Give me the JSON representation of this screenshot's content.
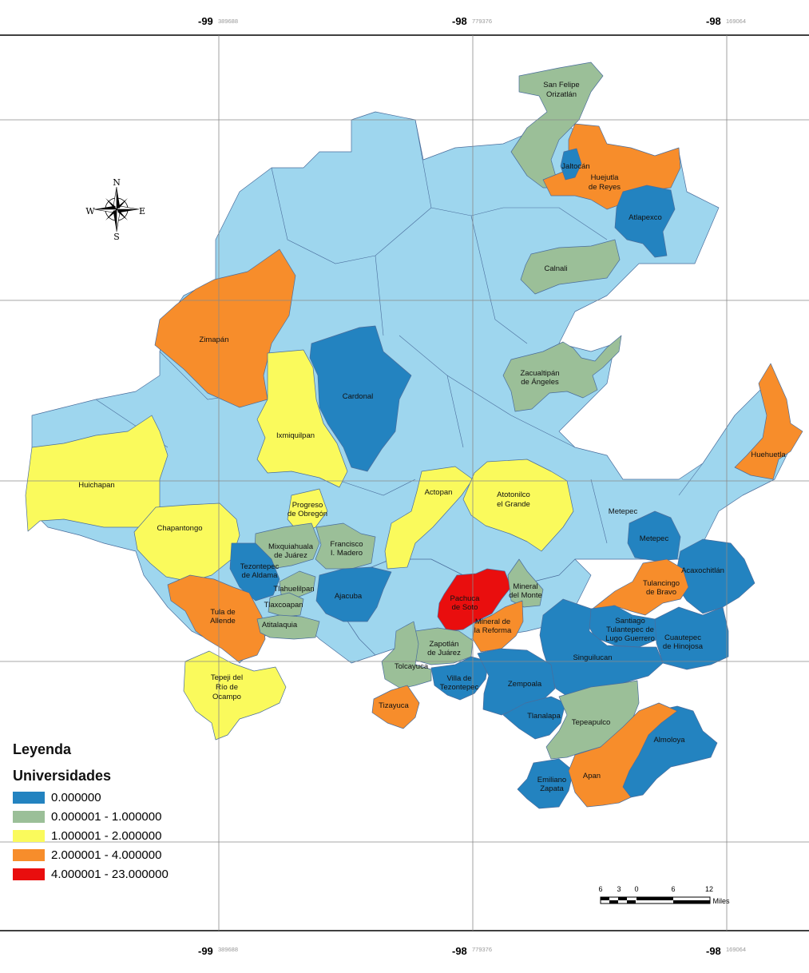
{
  "colors": {
    "background_region": "#9ed6ee",
    "class_0": "#2383c0",
    "class_1": "#9bbf98",
    "class_2": "#fafa5c",
    "class_3": "#f78d2b",
    "class_4": "#e90e0e"
  },
  "coordinates": {
    "longitudes": [
      {
        "deg": "-99",
        "sub": "389688"
      },
      {
        "deg": "-98",
        "sub": "779376"
      },
      {
        "deg": "-98",
        "sub": "169064"
      }
    ]
  },
  "compass": {
    "icon": "compass-rose-icon",
    "n": "N",
    "s": "S",
    "e": "E",
    "w": "W"
  },
  "legend": {
    "title": "Leyenda",
    "subtitle": "Universidades",
    "items": [
      {
        "label": "0.000000",
        "color": "#2383c0"
      },
      {
        "label": "0.000001 - 1.000000",
        "color": "#9bbf98"
      },
      {
        "label": "1.000001 - 2.000000",
        "color": "#fafa5c"
      },
      {
        "label": "2.000001 - 4.000000",
        "color": "#f78d2b"
      },
      {
        "label": "4.000001 - 23.000000",
        "color": "#e90e0e"
      }
    ]
  },
  "scale_bar": {
    "ticks": [
      "6",
      "3",
      "0",
      "6",
      "12"
    ],
    "unit": "Miles"
  },
  "municipalities": [
    {
      "name": "San Felipe Orizatlán",
      "line1": "San Felipe",
      "line2": "Orizatlán",
      "class": 1
    },
    {
      "name": "Jaltocán",
      "line1": "Jaltocán",
      "line2": "",
      "class": 0
    },
    {
      "name": "Huejutla de Reyes",
      "line1": "Huejutla",
      "line2": "de Reyes",
      "class": 3
    },
    {
      "name": "Atlapexco",
      "line1": "Atlapexco",
      "line2": "",
      "class": 0
    },
    {
      "name": "Calnali",
      "line1": "Calnali",
      "line2": "",
      "class": 1
    },
    {
      "name": "Zimapán",
      "line1": "Zimapán",
      "line2": "",
      "class": 3
    },
    {
      "name": "Cardonal",
      "line1": "Cardonal",
      "line2": "",
      "class": 0
    },
    {
      "name": "Zacualtipán de Ángeles",
      "line1": "Zacualtipán",
      "line2": "de Ángeles",
      "class": 1
    },
    {
      "name": "Ixmiquilpan",
      "line1": "Ixmiquilpan",
      "line2": "",
      "class": 2
    },
    {
      "name": "Huehuetla",
      "line1": "Huehuetla",
      "line2": "",
      "class": 3
    },
    {
      "name": "Huichapan",
      "line1": "Huichapan",
      "line2": "",
      "class": 2
    },
    {
      "name": "Actopan",
      "line1": "Actopan",
      "line2": "",
      "class": 2
    },
    {
      "name": "Atotonilco el Grande",
      "line1": "Atotonilco",
      "line2": "el Grande",
      "class": 2
    },
    {
      "name": "Metepec (upper)",
      "line1": "Metepec",
      "line2": "",
      "class": -1
    },
    {
      "name": "Progreso de Obregón",
      "line1": "Progreso",
      "line2": "de Obregón",
      "class": 2
    },
    {
      "name": "Chapantongo",
      "line1": "Chapantongo",
      "line2": "",
      "class": 2
    },
    {
      "name": "Metepec",
      "line1": "Metepec",
      "line2": "",
      "class": 0
    },
    {
      "name": "Mixquiahuala de Juárez",
      "line1": "Mixquiahuala",
      "line2": "de Juárez",
      "class": 1
    },
    {
      "name": "Francisco I. Madero",
      "line1": "Francisco",
      "line2": "I. Madero",
      "class": 1
    },
    {
      "name": "Tezontepec de Aldama",
      "line1": "Tezontepec",
      "line2": "de Aldama",
      "class": 0
    },
    {
      "name": "Acaxochitlán",
      "line1": "Acaxochitlán",
      "line2": "",
      "class": 0
    },
    {
      "name": "Tulancingo de Bravo",
      "line1": "Tulancingo",
      "line2": "de Bravo",
      "class": 3
    },
    {
      "name": "Tlahuelilpan",
      "line1": "Tlahuelilpan",
      "line2": "",
      "class": 1
    },
    {
      "name": "Tlaxcoapan",
      "line1": "Tlaxcoapan",
      "line2": "",
      "class": 1
    },
    {
      "name": "Ajacuba",
      "line1": "Ajacuba",
      "line2": "",
      "class": 0
    },
    {
      "name": "Pachuca de Soto",
      "line1": "Pachuca",
      "line2": "de Soto",
      "class": 4
    },
    {
      "name": "Mineral del Monte",
      "line1": "Mineral",
      "line2": "del Monte",
      "class": 1
    },
    {
      "name": "Tula de Allende",
      "line1": "Tula de",
      "line2": "Allende",
      "class": 3
    },
    {
      "name": "Atitalaquia",
      "line1": "Atitalaquia",
      "line2": "",
      "class": 1
    },
    {
      "name": "Mineral de la Reforma",
      "line1": "Mineral de",
      "line2": "la Reforma",
      "class": 3
    },
    {
      "name": "Santiago Tulantepec de Lugo Guerrero",
      "line1": "Santiago",
      "line2": "Tulantepec de",
      "line3": "Lugo Guerrero",
      "class": 0
    },
    {
      "name": "Cuautepec de Hinojosa",
      "line1": "Cuautepec",
      "line2": "de Hinojosa",
      "class": 0
    },
    {
      "name": "Zapotlán de Juárez",
      "line1": "Zapotlán",
      "line2": "de Juárez",
      "class": 1
    },
    {
      "name": "Singuilucan",
      "line1": "Singuilucan",
      "line2": "",
      "class": 0
    },
    {
      "name": "Tolcayuca",
      "line1": "Tolcayuca",
      "line2": "",
      "class": 1
    },
    {
      "name": "Villa de Tezontepec",
      "line1": "Villa de",
      "line2": "Tezontepec",
      "class": 0
    },
    {
      "name": "Zempoala",
      "line1": "Zempoala",
      "line2": "",
      "class": 0
    },
    {
      "name": "Tepeji del Río de Ocampo",
      "line1": "Tepeji del",
      "line2": "Río de",
      "line3": "Ocampo",
      "class": 2
    },
    {
      "name": "Tizayuca",
      "line1": "Tizayuca",
      "line2": "",
      "class": 3
    },
    {
      "name": "Tlanalapa",
      "line1": "Tlanalapa",
      "line2": "",
      "class": 0
    },
    {
      "name": "Tepeapulco",
      "line1": "Tepeapulco",
      "line2": "",
      "class": 1
    },
    {
      "name": "Almoloya",
      "line1": "Almoloya",
      "line2": "",
      "class": 0
    },
    {
      "name": "Emiliano Zapata",
      "line1": "Emiliano",
      "line2": "Zapata",
      "class": 0
    },
    {
      "name": "Apan",
      "line1": "Apan",
      "line2": "",
      "class": 3
    }
  ]
}
